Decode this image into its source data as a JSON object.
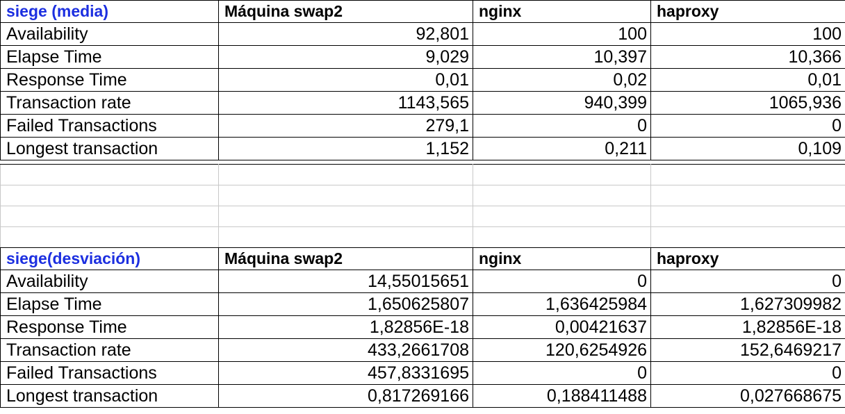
{
  "media": {
    "title": "siege (media)",
    "headers": [
      "Máquina swap2",
      "nginx",
      "haproxy"
    ],
    "rows": [
      {
        "label": "Availability",
        "values": [
          "92,801",
          "100",
          "100"
        ]
      },
      {
        "label": "Elapse Time",
        "values": [
          "9,029",
          "10,397",
          "10,366"
        ]
      },
      {
        "label": "Response Time",
        "values": [
          "0,01",
          "0,02",
          "0,01"
        ]
      },
      {
        "label": "Transaction rate",
        "values": [
          "1143,565",
          "940,399",
          "1065,936"
        ]
      },
      {
        "label": "Failed Transactions",
        "values": [
          "279,1",
          "0",
          "0"
        ]
      },
      {
        "label": "Longest transaction",
        "values": [
          "1,152",
          "0,211",
          "0,109"
        ]
      }
    ]
  },
  "desviacion": {
    "title": "siege(desviación)",
    "headers": [
      "Máquina swap2",
      "nginx",
      "haproxy"
    ],
    "rows": [
      {
        "label": "Availability",
        "values": [
          "14,55015651",
          "0",
          "0"
        ]
      },
      {
        "label": "Elapse Time",
        "values": [
          "1,650625807",
          "1,636425984",
          "1,627309982"
        ]
      },
      {
        "label": "Response Time",
        "values": [
          "1,82856E-18",
          "0,00421637",
          "1,82856E-18"
        ]
      },
      {
        "label": "Transaction rate",
        "values": [
          "433,2661708",
          "120,6254926",
          "152,6469217"
        ]
      },
      {
        "label": "Failed Transactions",
        "values": [
          "457,8331695",
          "0",
          "0"
        ]
      },
      {
        "label": "Longest transaction",
        "values": [
          "0,817269166",
          "0,188411488",
          "0,027668675"
        ]
      }
    ]
  },
  "colors": {
    "title": "#1c2fe0",
    "grid_major": "#000000",
    "grid_minor": "#c8c8c8"
  }
}
